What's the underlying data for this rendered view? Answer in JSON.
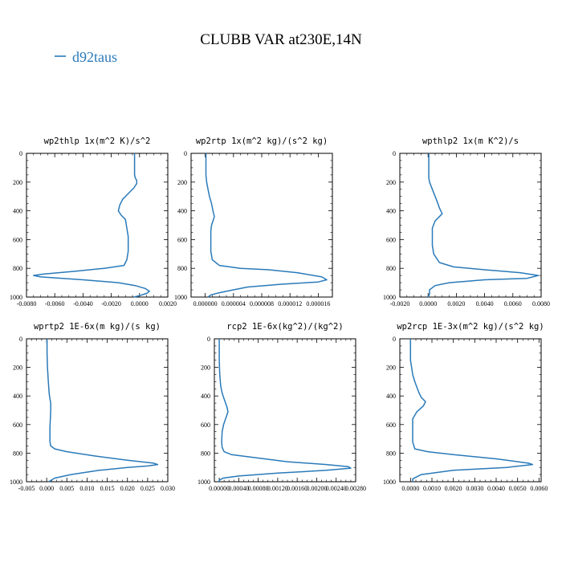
{
  "figure": {
    "title": "CLUBB VAR at230E,14N",
    "legend": [
      {
        "name": "d92taus",
        "color": "#2a7ab9"
      }
    ]
  },
  "chart_data": [
    {
      "type": "line",
      "title": "wp2thlp  1x(m^2 K)/s^2",
      "x_tick_labels": [
        "-0.0080",
        "-0.0060",
        "-0.0040",
        "-0.0020",
        "0.0000",
        "0.0020"
      ],
      "y_tick_labels": [
        "0",
        "200",
        "400",
        "600",
        "800",
        "1000"
      ],
      "xlim": [
        -0.008,
        0.002
      ],
      "ylim": [
        1000,
        0
      ],
      "series": [
        {
          "name": "d92taus",
          "x": [
            -0.00035,
            -0.00035,
            -0.00035,
            -0.0003,
            -0.0002,
            -0.0002,
            -0.0004,
            -0.0008,
            -0.0012,
            -0.0014,
            -0.0015,
            -0.0013,
            -0.001,
            -0.0009,
            -0.0008,
            -0.0008,
            -0.0008,
            -0.0009,
            -0.0011,
            -0.0025,
            -0.0045,
            -0.0068,
            -0.0075,
            -0.007,
            -0.004,
            -0.0015,
            -0.0003,
            0.0004,
            0.0007,
            0.0005,
            0.0,
            -0.0004
          ],
          "y": [
            0,
            100,
            150,
            170,
            190,
            210,
            240,
            280,
            320,
            360,
            400,
            430,
            460,
            520,
            580,
            620,
            680,
            740,
            780,
            800,
            820,
            840,
            850,
            860,
            880,
            900,
            920,
            940,
            960,
            975,
            990,
            1000
          ]
        }
      ]
    },
    {
      "type": "line",
      "title": "wp2rtp  1x(m^2 kg)/(s^2 kg)",
      "x_tick_labels": [
        "0.000000",
        "0.000004",
        "0.000008",
        "0.000012",
        "0.000016"
      ],
      "y_tick_labels": [
        "0",
        "200",
        "400",
        "600",
        "800",
        "1000"
      ],
      "xlim": [
        -2e-06,
        1.8e-05
      ],
      "ylim": [
        1000,
        0
      ],
      "series": [
        {
          "name": "d92taus",
          "x": [
            1e-07,
            1e-07,
            1e-07,
            2e-07,
            4e-07,
            6e-07,
            9e-07,
            1.1e-06,
            1.3e-06,
            1.1e-06,
            9e-07,
            8e-07,
            8e-07,
            8e-07,
            8e-07,
            1e-06,
            2e-06,
            5e-06,
            9e-06,
            1.3e-05,
            1.65e-05,
            1.72e-05,
            1.6e-05,
            1.1e-05,
            6e-06,
            4e-06,
            2e-06,
            8e-07,
            4e-07
          ],
          "y": [
            0,
            100,
            150,
            200,
            250,
            300,
            350,
            400,
            440,
            470,
            500,
            540,
            580,
            620,
            680,
            740,
            780,
            800,
            810,
            830,
            860,
            880,
            895,
            910,
            930,
            950,
            970,
            985,
            1000
          ]
        }
      ]
    },
    {
      "type": "line",
      "title": "wpthlp2  1x(m K^2)/s",
      "x_tick_labels": [
        "-0.0020",
        "0.0000",
        "0.0020",
        "0.0040",
        "0.0060",
        "0.0080"
      ],
      "y_tick_labels": [
        "0",
        "200",
        "400",
        "600",
        "800",
        "1000"
      ],
      "xlim": [
        -0.002,
        0.008
      ],
      "ylim": [
        1000,
        0
      ],
      "series": [
        {
          "name": "d92taus",
          "x": [
            5e-05,
            5e-05,
            5e-05,
            0.0001,
            0.0003,
            0.0005,
            0.0007,
            0.0008,
            0.0009,
            0.001,
            0.0008,
            0.0005,
            0.0003,
            0.0003,
            0.0003,
            0.0004,
            0.0008,
            0.0018,
            0.004,
            0.0065,
            0.0078,
            0.007,
            0.004,
            0.0015,
            0.0005,
            0.0001,
            0.0001,
            0.0
          ],
          "y": [
            0,
            100,
            170,
            200,
            250,
            300,
            350,
            380,
            400,
            420,
            440,
            470,
            520,
            580,
            640,
            700,
            760,
            790,
            810,
            830,
            850,
            870,
            880,
            900,
            920,
            950,
            980,
            1000
          ]
        }
      ]
    },
    {
      "type": "line",
      "title": "wprtp2  1E-6x(m kg)/(s kg)",
      "x_tick_labels": [
        "-0.005",
        "0.000",
        "0.005",
        "0.010",
        "0.015",
        "0.020",
        "0.025",
        "0.030"
      ],
      "y_tick_labels": [
        "0",
        "200",
        "400",
        "600",
        "800",
        "1000"
      ],
      "xlim": [
        -0.005,
        0.03
      ],
      "ylim": [
        1000,
        0
      ],
      "series": [
        {
          "name": "d92taus",
          "x": [
            0.0001,
            0.0001,
            0.0002,
            0.0004,
            0.0006,
            0.0008,
            0.001,
            0.001,
            0.0009,
            0.0008,
            0.0008,
            0.0008,
            0.001,
            0.002,
            0.005,
            0.012,
            0.02,
            0.0265,
            0.0275,
            0.025,
            0.02,
            0.013,
            0.006,
            0.002,
            0.0005
          ],
          "y": [
            0,
            100,
            200,
            300,
            380,
            420,
            450,
            500,
            560,
            620,
            680,
            720,
            750,
            770,
            790,
            820,
            850,
            870,
            880,
            890,
            900,
            920,
            950,
            975,
            1000
          ]
        }
      ]
    },
    {
      "type": "line",
      "title": "rcp2  1E-6x(kg^2)/(kg^2)",
      "x_tick_labels": [
        "0.00000",
        "0.00040",
        "0.00080",
        "0.00120",
        "0.00160",
        "0.00200",
        "0.00240",
        "0.00280"
      ],
      "y_tick_labels": [
        "0",
        "200",
        "400",
        "600",
        "800",
        "1000"
      ],
      "xlim": [
        -0.0001,
        0.0028
      ],
      "ylim": [
        1000,
        0
      ],
      "series": [
        {
          "name": "d92taus",
          "x": [
            0.0,
            0.0,
            1e-05,
            3e-05,
            6e-05,
            0.0001,
            0.00013,
            0.00016,
            0.00018,
            0.00014,
            9e-05,
            6e-05,
            5e-05,
            6e-05,
            0.0001,
            0.00025,
            0.0007,
            0.0014,
            0.0022,
            0.00265,
            0.0027,
            0.0022,
            0.0012,
            0.0004,
            8e-05,
            0.0,
            0.0
          ],
          "y": [
            0,
            150,
            250,
            330,
            380,
            420,
            450,
            480,
            510,
            550,
            600,
            650,
            720,
            760,
            790,
            810,
            830,
            860,
            880,
            895,
            905,
            920,
            940,
            960,
            975,
            990,
            1000
          ]
        }
      ]
    },
    {
      "type": "line",
      "title": "wp2rcp  1E-3x(m^2 kg)/(s^2 kg)",
      "x_tick_labels": [
        "0.0000",
        "0.0010",
        "0.0020",
        "0.0030",
        "0.0040",
        "0.0050",
        "0.0060"
      ],
      "y_tick_labels": [
        "0",
        "200",
        "400",
        "600",
        "800",
        "1000"
      ],
      "xlim": [
        -0.0005,
        0.0061
      ],
      "ylim": [
        1000,
        0
      ],
      "series": [
        {
          "name": "d92taus",
          "x": [
            0.0,
            0.0,
            5e-05,
            0.0001,
            0.0002,
            0.0003,
            0.0004,
            0.0005,
            0.0007,
            0.0006,
            0.0003,
            0.0001,
            0.0001,
            0.0001,
            0.0002,
            0.0008,
            0.002,
            0.004,
            0.0055,
            0.0057,
            0.0045,
            0.002,
            0.0005,
            0.0001,
            0.0001
          ],
          "y": [
            0,
            150,
            200,
            250,
            300,
            340,
            380,
            410,
            440,
            470,
            510,
            560,
            640,
            720,
            770,
            790,
            810,
            840,
            870,
            880,
            900,
            920,
            950,
            980,
            1000
          ]
        }
      ]
    }
  ]
}
